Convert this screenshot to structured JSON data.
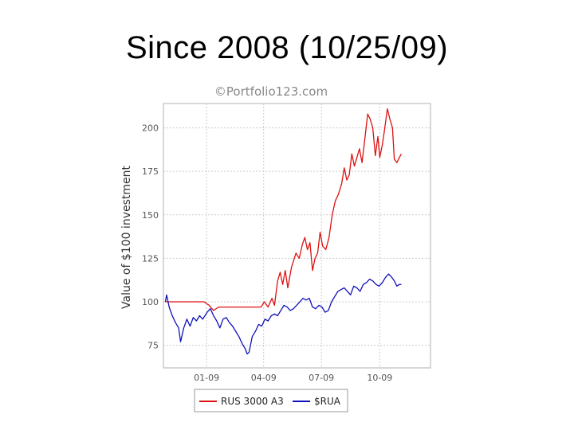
{
  "title": "Since 2008 (10/25/09)",
  "watermark": "©Portfolio123.com",
  "colors": {
    "red_series": "#dd1111",
    "blue_series": "#1111bb",
    "grid": "#cccccc"
  },
  "chart_data": {
    "type": "line",
    "ylabel": "Value of $100 investment",
    "xlabel": "",
    "ylim": [
      62,
      214
    ],
    "yticks": [
      75,
      100,
      125,
      150,
      175,
      200
    ],
    "x_range": [
      "2008-10-25",
      "2009-12-20"
    ],
    "xticks": [
      {
        "date": "2009-01-01",
        "label": "01-09"
      },
      {
        "date": "2009-04-01",
        "label": "04-09"
      },
      {
        "date": "2009-07-01",
        "label": "07-09"
      },
      {
        "date": "2009-10-01",
        "label": "10-09"
      }
    ],
    "grid": true,
    "legend_position": "bottom",
    "series": [
      {
        "name": "RUS 3000 A3",
        "color": "#dd1111",
        "points": [
          [
            "2008-10-28",
            100
          ],
          [
            "2008-11-15",
            100
          ],
          [
            "2008-12-05",
            100
          ],
          [
            "2008-12-28",
            100
          ],
          [
            "2009-01-05",
            98
          ],
          [
            "2009-01-12",
            95
          ],
          [
            "2009-01-20",
            97
          ],
          [
            "2009-02-05",
            97
          ],
          [
            "2009-02-25",
            97
          ],
          [
            "2009-03-15",
            97
          ],
          [
            "2009-03-28",
            97
          ],
          [
            "2009-04-02",
            100
          ],
          [
            "2009-04-08",
            97
          ],
          [
            "2009-04-14",
            102
          ],
          [
            "2009-04-18",
            98
          ],
          [
            "2009-04-23",
            112
          ],
          [
            "2009-04-27",
            117
          ],
          [
            "2009-05-01",
            110
          ],
          [
            "2009-05-05",
            118
          ],
          [
            "2009-05-09",
            108
          ],
          [
            "2009-05-15",
            120
          ],
          [
            "2009-05-22",
            128
          ],
          [
            "2009-05-27",
            125
          ],
          [
            "2009-06-01",
            133
          ],
          [
            "2009-06-05",
            137
          ],
          [
            "2009-06-09",
            130
          ],
          [
            "2009-06-13",
            134
          ],
          [
            "2009-06-17",
            118
          ],
          [
            "2009-06-21",
            125
          ],
          [
            "2009-06-25",
            128
          ],
          [
            "2009-06-29",
            140
          ],
          [
            "2009-07-03",
            132
          ],
          [
            "2009-07-08",
            130
          ],
          [
            "2009-07-13",
            137
          ],
          [
            "2009-07-18",
            150
          ],
          [
            "2009-07-23",
            158
          ],
          [
            "2009-07-28",
            162
          ],
          [
            "2009-08-02",
            168
          ],
          [
            "2009-08-06",
            177
          ],
          [
            "2009-08-10",
            170
          ],
          [
            "2009-08-14",
            173
          ],
          [
            "2009-08-18",
            185
          ],
          [
            "2009-08-22",
            178
          ],
          [
            "2009-08-26",
            183
          ],
          [
            "2009-08-30",
            188
          ],
          [
            "2009-09-03",
            180
          ],
          [
            "2009-09-08",
            195
          ],
          [
            "2009-09-12",
            208
          ],
          [
            "2009-09-16",
            205
          ],
          [
            "2009-09-20",
            200
          ],
          [
            "2009-09-24",
            184
          ],
          [
            "2009-09-28",
            195
          ],
          [
            "2009-10-01",
            183
          ],
          [
            "2009-10-05",
            190
          ],
          [
            "2009-10-09",
            200
          ],
          [
            "2009-10-13",
            211
          ],
          [
            "2009-10-17",
            205
          ],
          [
            "2009-10-21",
            200
          ],
          [
            "2009-10-24",
            182
          ],
          [
            "2009-10-28",
            180
          ],
          [
            "2009-11-01",
            183
          ],
          [
            "2009-11-04",
            185
          ]
        ]
      },
      {
        "name": "$RUA",
        "color": "#1111bb",
        "points": [
          [
            "2008-10-28",
            100
          ],
          [
            "2008-10-30",
            104
          ],
          [
            "2008-11-03",
            97
          ],
          [
            "2008-11-08",
            92
          ],
          [
            "2008-11-13",
            88
          ],
          [
            "2008-11-18",
            85
          ],
          [
            "2008-11-21",
            77
          ],
          [
            "2008-11-26",
            85
          ],
          [
            "2008-12-01",
            90
          ],
          [
            "2008-12-06",
            86
          ],
          [
            "2008-12-11",
            91
          ],
          [
            "2008-12-16",
            89
          ],
          [
            "2008-12-21",
            92
          ],
          [
            "2008-12-26",
            90
          ],
          [
            "2009-01-02",
            94
          ],
          [
            "2009-01-07",
            96
          ],
          [
            "2009-01-12",
            92
          ],
          [
            "2009-01-17",
            89
          ],
          [
            "2009-01-22",
            85
          ],
          [
            "2009-01-27",
            90
          ],
          [
            "2009-02-01",
            91
          ],
          [
            "2009-02-06",
            88
          ],
          [
            "2009-02-11",
            86
          ],
          [
            "2009-02-16",
            83
          ],
          [
            "2009-02-21",
            80
          ],
          [
            "2009-02-26",
            76
          ],
          [
            "2009-03-03",
            73
          ],
          [
            "2009-03-06",
            70
          ],
          [
            "2009-03-09",
            71
          ],
          [
            "2009-03-14",
            80
          ],
          [
            "2009-03-19",
            83
          ],
          [
            "2009-03-24",
            87
          ],
          [
            "2009-03-29",
            86
          ],
          [
            "2009-04-03",
            90
          ],
          [
            "2009-04-08",
            89
          ],
          [
            "2009-04-13",
            92
          ],
          [
            "2009-04-18",
            93
          ],
          [
            "2009-04-23",
            92
          ],
          [
            "2009-04-28",
            95
          ],
          [
            "2009-05-03",
            98
          ],
          [
            "2009-05-08",
            97
          ],
          [
            "2009-05-13",
            95
          ],
          [
            "2009-05-18",
            96
          ],
          [
            "2009-05-23",
            98
          ],
          [
            "2009-05-28",
            100
          ],
          [
            "2009-06-02",
            102
          ],
          [
            "2009-06-07",
            101
          ],
          [
            "2009-06-12",
            102
          ],
          [
            "2009-06-17",
            97
          ],
          [
            "2009-06-22",
            96
          ],
          [
            "2009-06-27",
            98
          ],
          [
            "2009-07-02",
            97
          ],
          [
            "2009-07-07",
            94
          ],
          [
            "2009-07-12",
            95
          ],
          [
            "2009-07-17",
            100
          ],
          [
            "2009-07-22",
            103
          ],
          [
            "2009-07-27",
            106
          ],
          [
            "2009-08-01",
            107
          ],
          [
            "2009-08-06",
            108
          ],
          [
            "2009-08-11",
            106
          ],
          [
            "2009-08-16",
            104
          ],
          [
            "2009-08-21",
            109
          ],
          [
            "2009-08-26",
            108
          ],
          [
            "2009-08-31",
            106
          ],
          [
            "2009-09-05",
            110
          ],
          [
            "2009-09-10",
            111
          ],
          [
            "2009-09-15",
            113
          ],
          [
            "2009-09-20",
            112
          ],
          [
            "2009-09-25",
            110
          ],
          [
            "2009-09-30",
            109
          ],
          [
            "2009-10-05",
            111
          ],
          [
            "2009-10-10",
            114
          ],
          [
            "2009-10-15",
            116
          ],
          [
            "2009-10-20",
            114
          ],
          [
            "2009-10-24",
            112
          ],
          [
            "2009-10-28",
            109
          ],
          [
            "2009-11-01",
            110
          ],
          [
            "2009-11-04",
            110
          ]
        ]
      }
    ]
  }
}
